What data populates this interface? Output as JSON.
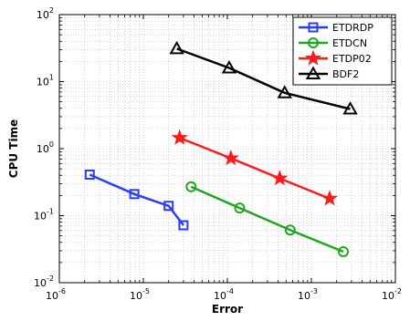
{
  "chart_data": {
    "type": "line",
    "title": "",
    "xlabel": "Error",
    "ylabel": "CPU Time",
    "xscale": "log",
    "yscale": "log",
    "xlim": [
      1e-06,
      0.01
    ],
    "ylim": [
      0.01,
      100.0
    ],
    "grid": "major and minor, dotted",
    "legend_position": "top-right",
    "xticks": [
      {
        "base": "10",
        "exp": "-6"
      },
      {
        "base": "10",
        "exp": "-5"
      },
      {
        "base": "10",
        "exp": "-4"
      },
      {
        "base": "10",
        "exp": "-3"
      },
      {
        "base": "10",
        "exp": "-2"
      }
    ],
    "yticks": [
      {
        "base": "10",
        "exp": "-2"
      },
      {
        "base": "10",
        "exp": "-1"
      },
      {
        "base": "10",
        "exp": "0"
      },
      {
        "base": "10",
        "exp": "1"
      },
      {
        "base": "10",
        "exp": "2"
      }
    ],
    "series": [
      {
        "name": "ETDRDP",
        "color": "#2b3bff",
        "marker": "square",
        "x": [
          2.3e-06,
          7.8e-06,
          2e-05,
          3e-05
        ],
        "y": [
          0.41,
          0.21,
          0.14,
          0.072
        ]
      },
      {
        "name": "ETDCN",
        "color": "#1fa81f",
        "marker": "circle",
        "x": [
          3.7e-05,
          0.00014,
          0.00056,
          0.0024
        ],
        "y": [
          0.27,
          0.13,
          0.061,
          0.029
        ]
      },
      {
        "name": "ETDP02",
        "color": "#ff1a1a",
        "marker": "star",
        "x": [
          2.7e-05,
          0.00011,
          0.00042,
          0.00165
        ],
        "y": [
          1.45,
          0.72,
          0.36,
          0.18
        ]
      },
      {
        "name": "BDF2",
        "color": "#000000",
        "marker": "triangle",
        "x": [
          2.5e-05,
          0.000105,
          0.00048,
          0.0029
        ],
        "y": [
          31,
          16,
          6.8,
          3.9
        ]
      }
    ]
  }
}
